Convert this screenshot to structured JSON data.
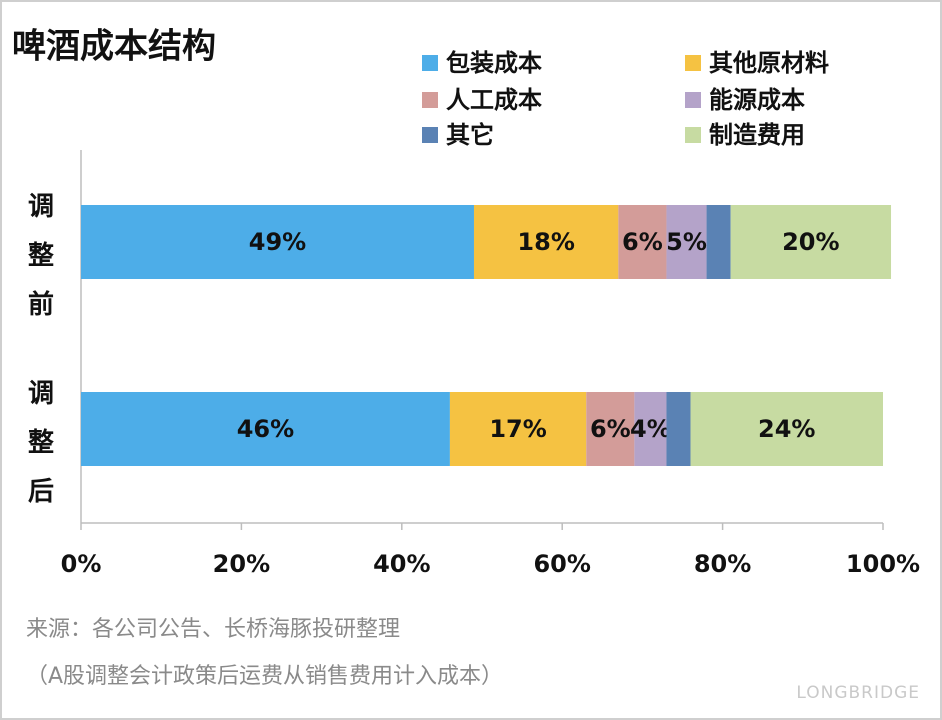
{
  "chart_data": {
    "type": "stacked-barh",
    "title": "啤酒成本结构",
    "categories": [
      "调整前",
      "调整后"
    ],
    "series": [
      {
        "name": "包装成本",
        "color": "#4dade8",
        "values": [
          49,
          46
        ],
        "value_labels": [
          "49%",
          "46%"
        ]
      },
      {
        "name": "其他原材料",
        "color": "#f5c242",
        "values": [
          18,
          17
        ],
        "value_labels": [
          "18%",
          "17%"
        ]
      },
      {
        "name": "人工成本",
        "color": "#d39c99",
        "values": [
          6,
          6
        ],
        "value_labels": [
          "6%",
          "6%"
        ]
      },
      {
        "name": "能源成本",
        "color": "#b4a3c9",
        "values": [
          5,
          4
        ],
        "value_labels": [
          "5%",
          "4%"
        ]
      },
      {
        "name": "其它",
        "color": "#5a82b4",
        "values": [
          3,
          3
        ]
      },
      {
        "name": "制造费用",
        "color": "#c7dba2",
        "values": [
          20,
          24
        ],
        "value_labels": [
          "20%",
          "24%"
        ]
      }
    ],
    "xlim": [
      0,
      100
    ],
    "xticks": [
      {
        "value": 0,
        "label": "0%"
      },
      {
        "value": 20,
        "label": "20%"
      },
      {
        "value": 40,
        "label": "40%"
      },
      {
        "value": 60,
        "label": "60%"
      },
      {
        "value": 80,
        "label": "80%"
      },
      {
        "value": 100,
        "label": "100%"
      }
    ],
    "legend": "top-right",
    "source": "来源：各公司公告、长桥海豚投研整理",
    "note": "（A股调整会计政策后运费从销售费用计入成本）",
    "watermark": "LONGBRIDGE"
  }
}
